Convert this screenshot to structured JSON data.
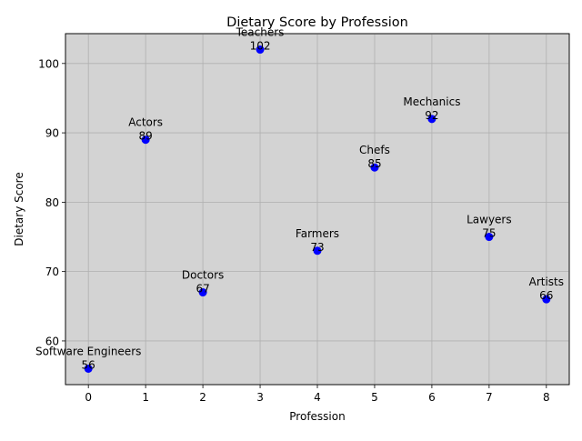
{
  "chart_data": {
    "type": "scatter",
    "title": "Dietary Score by Profession",
    "xlabel": "Profession",
    "ylabel": "Dietary Score",
    "x": [
      0,
      1,
      2,
      3,
      4,
      5,
      6,
      7,
      8
    ],
    "y": [
      56,
      89,
      67,
      102,
      73,
      85,
      92,
      75,
      66
    ],
    "point_labels": [
      "Software Engineers",
      "Actors",
      "Doctors",
      "Teachers",
      "Farmers",
      "Chefs",
      "Mechanics",
      "Lawyers",
      "Artists"
    ],
    "xticks": [
      0,
      1,
      2,
      3,
      4,
      5,
      6,
      7,
      8
    ],
    "yticks": [
      60,
      70,
      80,
      90,
      100
    ],
    "xlim": [
      -0.4,
      8.4
    ],
    "ylim": [
      53.7,
      104.3
    ],
    "grid": true,
    "colors": {
      "point": "#0000ff",
      "plot_background": "#d3d3d3",
      "grid": "#b0b0b0"
    }
  }
}
